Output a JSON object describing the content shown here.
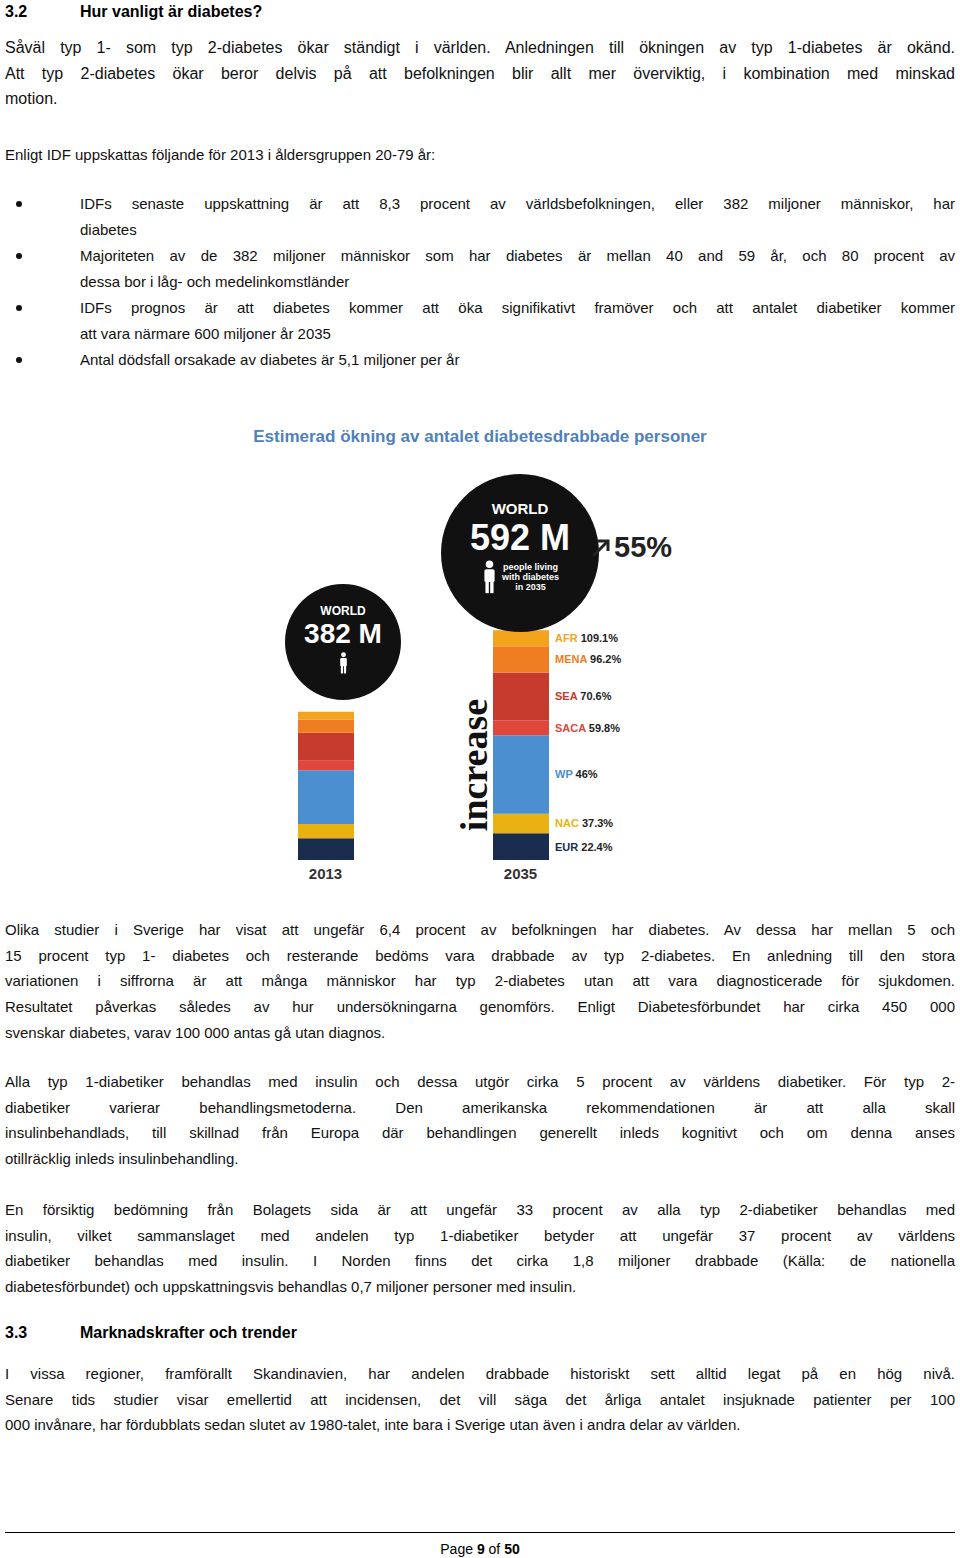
{
  "document": {
    "section_1": {
      "number": "3.2",
      "title": "Hur vanligt är diabetes?"
    },
    "paragraph_1": [
      "Såväl typ 1- som typ 2-diabetes ökar ständigt i världen. Anledningen till ökningen av typ 1-diabetes är okänd.",
      "Att typ 2-diabetes ökar beror delvis på att befolkningen blir allt mer överviktig, i kombination med minskad",
      "motion."
    ],
    "lead": "Enligt IDF uppskattas följande för 2013 i åldersgruppen 20-79 år:",
    "bullets": [
      [
        "IDFs senaste uppskattning är att 8,3 procent av världsbefolkningen, eller 382 miljoner människor, har",
        "diabetes"
      ],
      [
        "Majoriteten av de 382 miljoner människor som har diabetes är mellan 40 and 59 år, och 80 procent av",
        "dessa bor i låg- och medelinkomstländer"
      ],
      [
        "IDFs prognos är att diabetes kommer att öka signifikativt framöver och att antalet diabetiker kommer",
        "att vara närmare 600 miljoner år 2035"
      ],
      [
        "Antal dödsfall orsakade av diabetes är 5,1 miljoner per år"
      ]
    ],
    "paragraphs": [
      [
        "Olika studier i Sverige har visat att ungefär 6,4 procent av befolkningen har diabetes. Av dessa har mellan 5 och",
        "15 procent typ 1- diabetes och resterande bedöms vara drabbade av typ 2-diabetes. En anledning till den stora",
        "variationen i siffrorna är att många människor har typ 2-diabetes utan att vara diagnosticerade för sjukdomen.",
        "Resultatet påverkas således av hur undersökningarna genomförs. Enligt Diabetesförbundet har cirka 450 000",
        "svenskar diabetes, varav 100 000 antas gå utan diagnos."
      ],
      [
        "Alla typ 1-diabetiker behandlas med insulin och dessa utgör cirka 5 procent av världens diabetiker. För typ 2-",
        "diabetiker varierar behandlingsmetoderna. Den amerikanska rekommendationen är att alla skall",
        "insulinbehandlads, till skillnad från Europa där behandlingen generellt inleds kognitivt och om denna anses",
        "otillräcklig inleds insulinbehandling."
      ],
      [
        "En försiktig bedömning från Bolagets sida är att ungefär 33 procent av alla typ 2-diabetiker behandlas med",
        "insulin, vilket sammanslaget med andelen typ 1-diabetiker betyder att ungefär 37 procent av världens",
        "diabetiker behandlas med insulin. I Norden finns det cirka 1,8 miljoner drabbade (Källa: de nationella",
        "diabetesförbundet) och uppskattningsvis behandlas 0,7 miljoner personer med insulin."
      ]
    ],
    "section_2": {
      "number": "3.3",
      "title": "Marknadskrafter och trender"
    },
    "paragraph_2": [
      "I vissa regioner, framförallt Skandinavien, har andelen drabbade historiskt sett alltid legat på en hög nivå.",
      "Senare tids studier visar emellertid att incidensen, det vill säga det årliga antalet insjuknade patienter per 100",
      "000 invånare, har fördubblats sedan slutet av 1980-talet, inte bara i Sverige utan även i andra delar av världen."
    ],
    "footer": {
      "label": "Page",
      "page": 9,
      "separator": "of",
      "total": 50
    }
  },
  "chart_data": {
    "type": "bar",
    "title": "Estimerad ökning av antalet diabetesdrabbade personer",
    "stacked": true,
    "tick_labels": "x",
    "categories": [
      "2013",
      "2035"
    ],
    "series": [
      {
        "name": "EUR",
        "color": "#1b2d4f",
        "values": [
          56.3,
          68.9
        ],
        "increase": {
          "value": 22.4,
          "label": "22.4%"
        }
      },
      {
        "name": "NAC",
        "color": "#e9b212",
        "values": [
          36.7,
          50.4
        ],
        "increase": {
          "value": 37.3,
          "label": "37.3%"
        }
      },
      {
        "name": "WP",
        "color": "#4b8fd1",
        "values": [
          138.2,
          201.8
        ],
        "increase": {
          "value": 46,
          "label": "46%"
        }
      },
      {
        "name": "SACA",
        "color": "#e0473c",
        "values": [
          24.1,
          38.5
        ],
        "increase": {
          "value": 59.8,
          "label": "59.8%"
        }
      },
      {
        "name": "SEA",
        "color": "#c73a2e",
        "values": [
          72.1,
          123
        ],
        "increase": {
          "value": 70.6,
          "label": "70.6%"
        }
      },
      {
        "name": "MENA",
        "color": "#ef7d22",
        "values": [
          34.6,
          67.9
        ],
        "increase": {
          "value": 96.2,
          "label": "96.2%"
        }
      },
      {
        "name": "AFR",
        "color": "#f4a41c",
        "values": [
          19.8,
          41.4
        ],
        "increase": {
          "value": 109.1,
          "label": "109.1%"
        }
      }
    ],
    "totals": [
      {
        "heading": "WORLD",
        "value": 382,
        "label": "382 M"
      },
      {
        "heading": "WORLD",
        "value": 592,
        "label": "592 M",
        "caption": [
          "people living",
          "with diabetes",
          "in 2035"
        ]
      }
    ],
    "total_increase": {
      "value": 55,
      "label": "55%"
    },
    "annotation": "increase"
  }
}
